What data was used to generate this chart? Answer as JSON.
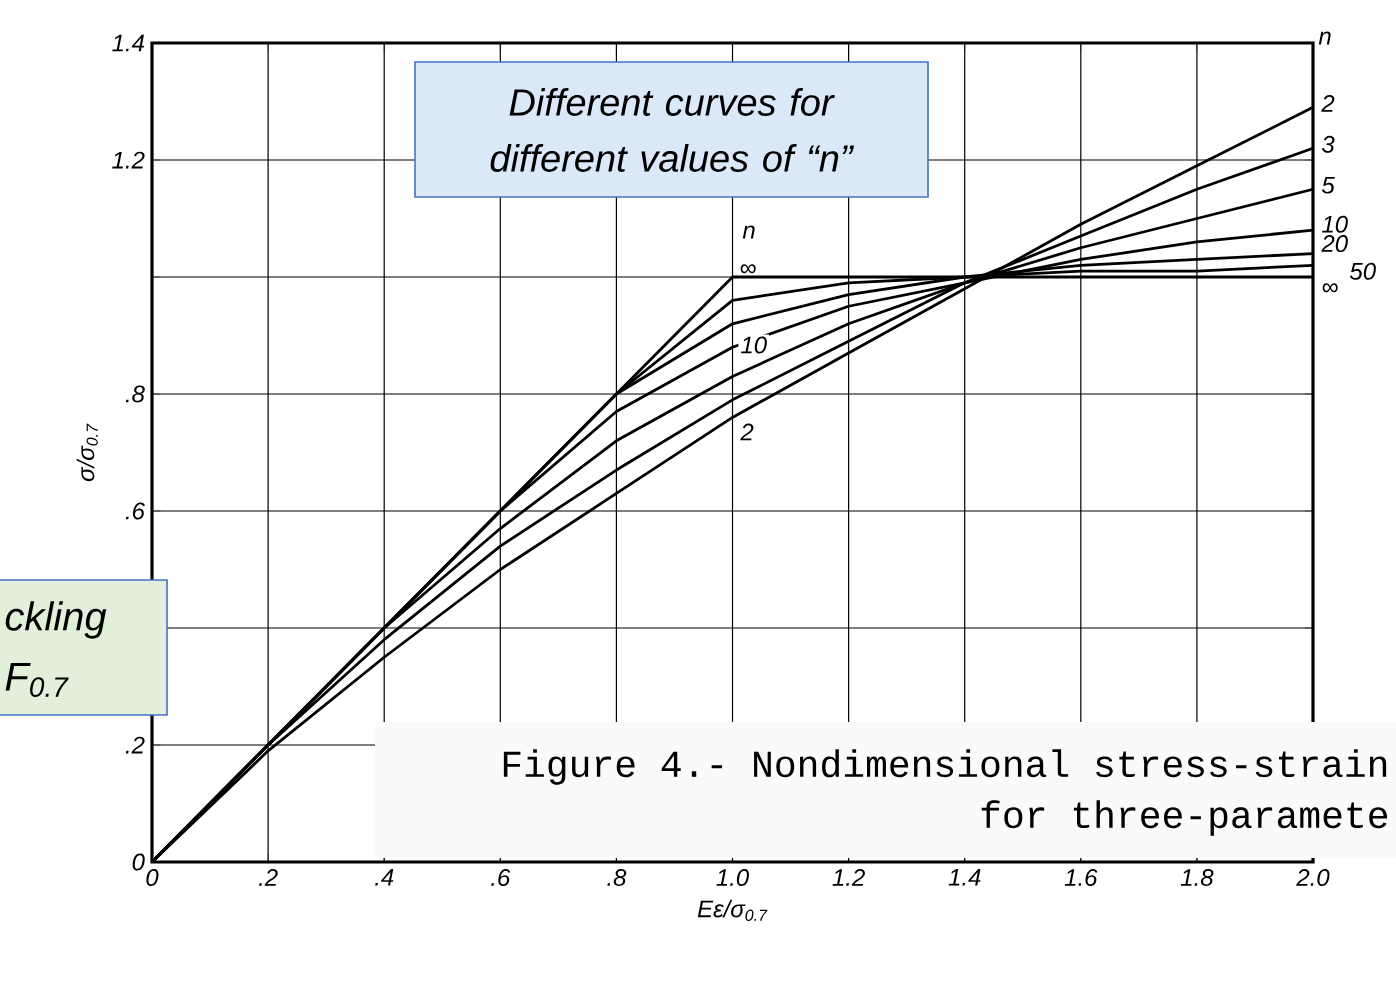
{
  "chart_data": {
    "type": "line",
    "xlabel": "Eε/σ$_{0.7}$",
    "ylabel": "σ/σ$_{0.7}$",
    "x": [
      0,
      0.2,
      0.4,
      0.6,
      0.8,
      1.0,
      1.2,
      1.4,
      1.6,
      1.8,
      2.0
    ],
    "series": [
      {
        "name": "2",
        "color": "#000000",
        "values": [
          0,
          0.19,
          0.35,
          0.5,
          0.63,
          0.76,
          0.87,
          0.98,
          1.09,
          1.19,
          1.29
        ]
      },
      {
        "name": "3",
        "color": "#000000",
        "values": [
          0,
          0.2,
          0.38,
          0.54,
          0.67,
          0.79,
          0.89,
          0.99,
          1.07,
          1.15,
          1.22
        ]
      },
      {
        "name": "5",
        "color": "#000000",
        "values": [
          0,
          0.2,
          0.4,
          0.57,
          0.72,
          0.83,
          0.92,
          0.99,
          1.05,
          1.1,
          1.15
        ]
      },
      {
        "name": "10",
        "color": "#000000",
        "values": [
          0,
          0.2,
          0.4,
          0.6,
          0.77,
          0.88,
          0.95,
          0.99,
          1.03,
          1.06,
          1.08
        ]
      },
      {
        "name": "20",
        "color": "#000000",
        "values": [
          0,
          0.2,
          0.4,
          0.6,
          0.8,
          0.92,
          0.97,
          1.0,
          1.02,
          1.03,
          1.04
        ]
      },
      {
        "name": "50",
        "color": "#000000",
        "values": [
          0,
          0.2,
          0.4,
          0.6,
          0.8,
          0.96,
          0.99,
          1.0,
          1.01,
          1.01,
          1.02
        ]
      },
      {
        "name": "∞",
        "color": "#000000",
        "values": [
          0,
          0.2,
          0.4,
          0.6,
          0.8,
          1.0,
          1.0,
          1.0,
          1.0,
          1.0,
          1.0
        ]
      }
    ],
    "xlim": [
      0,
      2
    ],
    "ylim": [
      0,
      1.4
    ],
    "xticks": [
      0,
      {
        "value": 0.2,
        "label": ".2"
      },
      {
        "value": 0.4,
        "label": ".4"
      },
      {
        "value": 0.6,
        "label": ".6"
      },
      {
        "value": 0.8,
        "label": ".8"
      },
      {
        "value": 1.0,
        "label": "1.0"
      },
      1.2,
      1.4,
      1.6,
      1.8,
      {
        "value": 2.0,
        "label": "2.0"
      }
    ],
    "yticks": [
      0,
      {
        "value": 0.2,
        "label": ".2"
      },
      {
        "value": 0.4,
        "label": null
      },
      {
        "value": 0.6,
        "label": ".6"
      },
      {
        "value": 0.8,
        "label": ".8"
      },
      {
        "value": 1.0,
        "label": null
      },
      1.2,
      1.4
    ],
    "grid": true,
    "annotations": [
      "Different curves for different values of “n”",
      "Figure 4.- Nondimensional stress-strain",
      "for three-paramete",
      "ckling",
      "F$_{0.7}$",
      "n",
      "∞",
      "10",
      "2",
      "n"
    ]
  }
}
